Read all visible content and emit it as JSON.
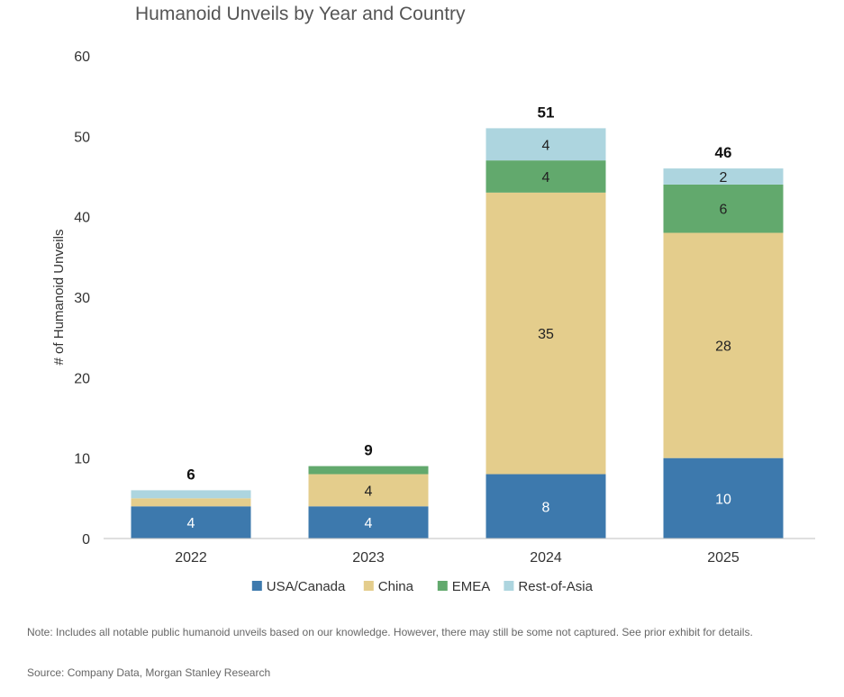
{
  "chart_data": {
    "type": "bar",
    "stacked": true,
    "title": "Humanoid Unveils by Year and Country",
    "xlabel": "",
    "ylabel": "# of Humanoid Unveils",
    "ylim": [
      0,
      60
    ],
    "yticks": [
      0,
      10,
      20,
      30,
      40,
      50,
      60
    ],
    "grid": false,
    "legend": "bottom-center",
    "categories": [
      "2022",
      "2023",
      "2024",
      "2025"
    ],
    "series": [
      {
        "name": "USA/Canada",
        "color": "#3d79ad",
        "label_color": "#ffffff",
        "values": [
          4,
          4,
          8,
          10
        ],
        "labels": [
          "4",
          "4",
          "8",
          "10"
        ]
      },
      {
        "name": "China",
        "color": "#e4cd8c",
        "label_color": "#222222",
        "values": [
          1,
          4,
          35,
          28
        ],
        "labels": [
          "",
          "4",
          "35",
          "28"
        ]
      },
      {
        "name": "EMEA",
        "color": "#62a96d",
        "label_color": "#222222",
        "values": [
          0,
          1,
          4,
          6
        ],
        "labels": [
          "",
          "",
          "4",
          "6"
        ]
      },
      {
        "name": "Rest-of-Asia",
        "color": "#add5df",
        "label_color": "#222222",
        "values": [
          1,
          0,
          4,
          2
        ],
        "labels": [
          "",
          "",
          "4",
          "2"
        ]
      }
    ],
    "totals": [
      6,
      9,
      51,
      46
    ]
  },
  "footer": {
    "note": "Note: Includes all notable public humanoid unveils based on our knowledge. However, there may still be some not captured. See prior exhibit for details.",
    "source": "Source: Company Data, Morgan Stanley Research"
  }
}
